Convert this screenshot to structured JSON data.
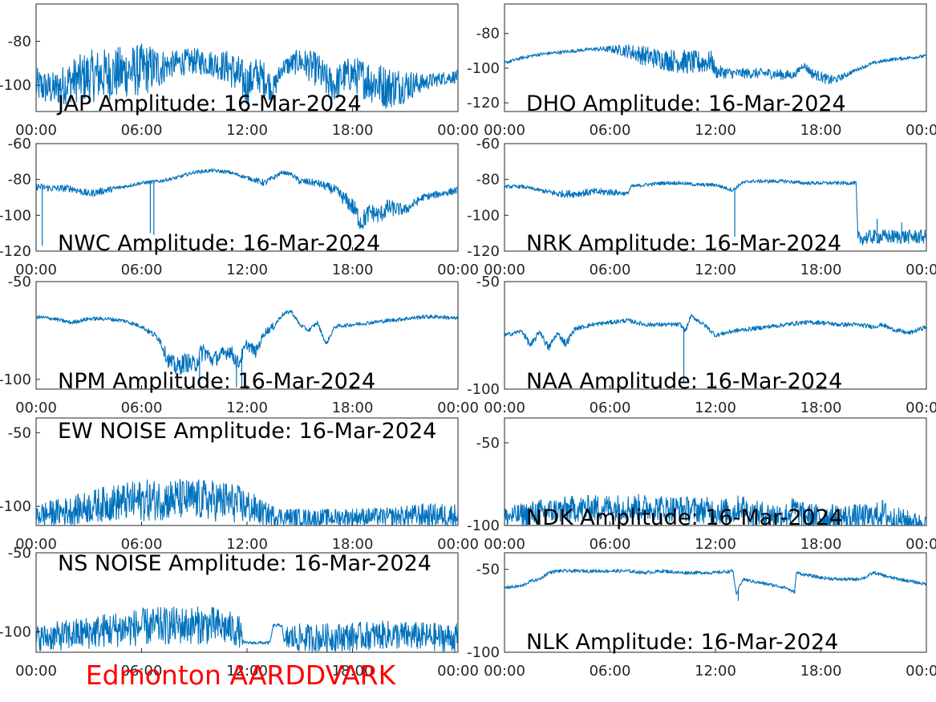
{
  "footer_label": "Edmonton AARDDVARK",
  "footer_color": "#ff0000",
  "line_color": "#0072BD",
  "x_tick_labels": [
    "00:00",
    "06:00",
    "12:00",
    "18:00",
    "00:00"
  ],
  "chart_data": [
    {
      "type": "line",
      "title": "JAP Amplitude: 16-Mar-2024",
      "xlabel": "",
      "ylabel": "",
      "xlim": [
        0,
        24
      ],
      "ylim": [
        -112,
        -63
      ],
      "yticks": [
        -80,
        -100
      ],
      "ytick_labels": [
        "-80",
        "-100"
      ],
      "x": [
        0,
        1,
        2,
        3,
        4,
        5,
        6,
        7,
        7.5,
        8,
        9,
        10,
        11,
        11.5,
        12,
        12.5,
        13,
        13.5,
        14,
        15,
        16,
        16.5,
        17,
        17.5,
        18,
        19,
        20,
        21,
        22,
        23,
        24
      ],
      "values": [
        -100,
        -102,
        -98,
        -96,
        -95,
        -94,
        -93,
        -92,
        -91,
        -90,
        -89,
        -90,
        -92,
        -96,
        -100,
        -95,
        -97,
        -102,
        -92,
        -89,
        -93,
        -98,
        -100,
        -96,
        -95,
        -98,
        -101,
        -100,
        -99,
        -97,
        -96
      ],
      "noise": [
        8,
        8,
        10,
        12,
        12,
        12,
        12,
        10,
        6,
        6,
        6,
        6,
        8,
        10,
        10,
        8,
        8,
        6,
        4,
        6,
        8,
        8,
        8,
        8,
        8,
        10,
        10,
        8,
        4,
        3,
        3
      ]
    },
    {
      "type": "line",
      "title": "DHO Amplitude: 16-Mar-2024",
      "xlabel": "",
      "ylabel": "",
      "xlim": [
        0,
        24
      ],
      "ylim": [
        -125,
        -63
      ],
      "yticks": [
        -80,
        -100,
        -120
      ],
      "ytick_labels": [
        "-80",
        "-100",
        "-120"
      ],
      "x": [
        0,
        1,
        2,
        3,
        4,
        5,
        6,
        7,
        8,
        9,
        10,
        11,
        11.8,
        12,
        13,
        14,
        15,
        16,
        16.5,
        17,
        17.5,
        18,
        18.5,
        19,
        20,
        21,
        22,
        23,
        24
      ],
      "values": [
        -97,
        -94,
        -92,
        -91,
        -90,
        -89,
        -89,
        -90,
        -93,
        -95,
        -96,
        -97,
        -96,
        -102,
        -103,
        -103,
        -103,
        -104,
        -104,
        -98,
        -103,
        -105,
        -107,
        -106,
        -101,
        -97,
        -95,
        -94,
        -93
      ],
      "noise": [
        1,
        1,
        1,
        1,
        1,
        1,
        2,
        4,
        6,
        6,
        7,
        7,
        6,
        4,
        3,
        3,
        3,
        3,
        2,
        2,
        3,
        3,
        3,
        2,
        1,
        1,
        1,
        1,
        1
      ]
    },
    {
      "type": "line",
      "title": "NWC Amplitude: 16-Mar-2024",
      "xlabel": "",
      "ylabel": "",
      "xlim": [
        0,
        24
      ],
      "ylim": [
        -120,
        -60
      ],
      "yticks": [
        -60,
        -80,
        -100,
        -120
      ],
      "ytick_labels": [
        "-60",
        "-80",
        "-100",
        "-120"
      ],
      "x": [
        0,
        1,
        2,
        3,
        4,
        5,
        6,
        7,
        8,
        9,
        10,
        11,
        12,
        13,
        14,
        14.5,
        15,
        16,
        17,
        18,
        18.5,
        19,
        19.5,
        20,
        21,
        22,
        23,
        24
      ],
      "values": [
        -84,
        -85,
        -85,
        -88,
        -86,
        -84,
        -82,
        -81,
        -79,
        -76,
        -75,
        -76,
        -79,
        -82,
        -76,
        -77,
        -81,
        -82,
        -86,
        -95,
        -104,
        -98,
        -100,
        -96,
        -97,
        -90,
        -88,
        -86
      ],
      "noise": [
        2,
        2,
        2,
        2,
        2,
        1,
        1,
        1,
        1,
        1,
        1,
        1,
        1,
        2,
        1,
        1,
        2,
        2,
        3,
        5,
        6,
        5,
        5,
        5,
        3,
        2,
        2,
        2
      ],
      "spikes": [
        [
          0.35,
          -117
        ],
        [
          6.5,
          -110
        ],
        [
          6.7,
          -111
        ]
      ]
    },
    {
      "type": "line",
      "title": "NRK Amplitude: 16-Mar-2024",
      "xlabel": "",
      "ylabel": "",
      "xlim": [
        0,
        24
      ],
      "ylim": [
        -120,
        -60
      ],
      "yticks": [
        -60,
        -80,
        -100,
        -120
      ],
      "ytick_labels": [
        "-60",
        "-80",
        "-100",
        "-120"
      ],
      "x": [
        0,
        1,
        2,
        3,
        4,
        5,
        6,
        7,
        7.2,
        8,
        9,
        10,
        11,
        12,
        13,
        13.5,
        14,
        15,
        16,
        17,
        18,
        19,
        20,
        20.1,
        21,
        22,
        23,
        24
      ],
      "values": [
        -84,
        -84,
        -86,
        -88,
        -88,
        -87,
        -87,
        -88,
        -84,
        -83,
        -82,
        -82,
        -83,
        -83,
        -86,
        -82,
        -81,
        -81,
        -81,
        -82,
        -82,
        -82,
        -82,
        -113,
        -112,
        -112,
        -112,
        -112
      ],
      "noise": [
        1,
        1,
        1,
        2,
        2,
        2,
        2,
        1,
        1,
        1,
        1,
        1,
        1,
        1,
        1,
        1,
        1,
        1,
        1,
        1,
        1,
        1,
        1,
        4,
        4,
        4,
        4,
        4
      ],
      "spikes": [
        [
          13.1,
          -112
        ],
        [
          21.2,
          -102
        ],
        [
          22.6,
          -104
        ]
      ]
    },
    {
      "type": "line",
      "title": "NPM Amplitude: 16-Mar-2024",
      "xlabel": "",
      "ylabel": "",
      "xlim": [
        0,
        24
      ],
      "ylim": [
        -105,
        -50
      ],
      "yticks": [
        -50,
        -100
      ],
      "ytick_labels": [
        "-50",
        "-100"
      ],
      "x": [
        0,
        1,
        2,
        3,
        4,
        5,
        6,
        7,
        7.5,
        8,
        8.5,
        9,
        9.5,
        10,
        10.5,
        11,
        11.5,
        12,
        12.5,
        13,
        13.5,
        14,
        14.5,
        15,
        15.5,
        16,
        16.5,
        17,
        18,
        19,
        20,
        21,
        22,
        23,
        24
      ],
      "values": [
        -68,
        -69,
        -71,
        -69,
        -69,
        -70,
        -73,
        -79,
        -90,
        -94,
        -91,
        -93,
        -85,
        -90,
        -88,
        -85,
        -92,
        -82,
        -86,
        -76,
        -73,
        -67,
        -65,
        -72,
        -75,
        -71,
        -82,
        -73,
        -72,
        -71,
        -70,
        -69,
        -68,
        -68,
        -69
      ],
      "noise": [
        1,
        1,
        1,
        1,
        1,
        1,
        1,
        2,
        4,
        5,
        5,
        5,
        5,
        4,
        4,
        4,
        4,
        3,
        3,
        2,
        2,
        1,
        1,
        1,
        1,
        1,
        1,
        1,
        1,
        1,
        1,
        1,
        1,
        1,
        1
      ],
      "spikes": [
        [
          9.3,
          -104
        ],
        [
          11.4,
          -104
        ],
        [
          11.7,
          -104
        ]
      ]
    },
    {
      "type": "line",
      "title": "NAA Amplitude: 16-Mar-2024",
      "xlabel": "",
      "ylabel": "",
      "xlim": [
        0,
        24
      ],
      "ylim": [
        -100,
        -50
      ],
      "yticks": [
        -50,
        -100
      ],
      "ytick_labels": [
        "-50",
        "-100"
      ],
      "x": [
        0,
        1,
        1.5,
        2,
        2.5,
        3,
        3.5,
        4,
        5,
        6,
        7,
        8,
        9,
        10,
        10.3,
        10.6,
        11,
        11.5,
        12,
        13,
        14,
        15,
        16,
        17,
        18,
        19,
        20,
        21,
        21.5,
        22,
        23,
        24
      ],
      "values": [
        -75,
        -73,
        -80,
        -73,
        -81,
        -74,
        -79,
        -72,
        -70,
        -69,
        -68,
        -70,
        -70,
        -70,
        -73,
        -66,
        -68,
        -71,
        -75,
        -73,
        -72,
        -71,
        -70,
        -69,
        -69,
        -70,
        -70,
        -71,
        -70,
        -72,
        -74,
        -71
      ],
      "noise": [
        1,
        1,
        2,
        1,
        2,
        1,
        2,
        1,
        1,
        1,
        1,
        1,
        1,
        1,
        1,
        1,
        1,
        1,
        1,
        1,
        1,
        1,
        1,
        1,
        1,
        1,
        1,
        1,
        1,
        1,
        1,
        1
      ],
      "spikes": [
        [
          10.2,
          -97
        ]
      ]
    },
    {
      "type": "line",
      "title": "EW NOISE Amplitude: 16-Mar-2024",
      "xlabel": "",
      "ylabel": "",
      "xlim": [
        0,
        24
      ],
      "ylim": [
        -113,
        -40
      ],
      "yticks": [
        -50,
        -100
      ],
      "ytick_labels": [
        "-50",
        "-100"
      ],
      "x": [
        0,
        2,
        4,
        6,
        8,
        10,
        11,
        12,
        13,
        14,
        16,
        18,
        20,
        22,
        24
      ],
      "values": [
        -106,
        -103,
        -98,
        -96,
        -95,
        -96,
        -97,
        -100,
        -105,
        -107,
        -108,
        -107,
        -107,
        -106,
        -106
      ],
      "noise": [
        8,
        10,
        12,
        14,
        14,
        14,
        14,
        12,
        8,
        6,
        6,
        6,
        6,
        8,
        8
      ]
    },
    {
      "type": "line",
      "title": "NDK Amplitude: 16-Mar-2024",
      "xlabel": "",
      "ylabel": "",
      "xlim": [
        0,
        24
      ],
      "ylim": [
        -100,
        -35
      ],
      "yticks": [
        -50,
        -100
      ],
      "ytick_labels": [
        "-50",
        "-100"
      ],
      "x": [
        0,
        2,
        4,
        6,
        8,
        10,
        12,
        13,
        13.5,
        14,
        16,
        16.5,
        17,
        18,
        20,
        21,
        21.5,
        22,
        23,
        24
      ],
      "values": [
        -95,
        -92,
        -90,
        -89,
        -89,
        -90,
        -91,
        -92,
        -88,
        -93,
        -94,
        -90,
        -94,
        -95,
        -95,
        -95,
        -92,
        -96,
        -97,
        -98
      ],
      "noise": [
        6,
        8,
        8,
        8,
        8,
        8,
        8,
        8,
        8,
        8,
        8,
        8,
        8,
        8,
        8,
        8,
        8,
        8,
        6,
        4
      ]
    },
    {
      "type": "line",
      "title": "NS NOISE Amplitude: 16-Mar-2024",
      "xlabel": "",
      "ylabel": "",
      "xlim": [
        0,
        24
      ],
      "ylim": [
        -113,
        -50
      ],
      "yticks": [
        -50,
        -100
      ],
      "ytick_labels": [
        "-50",
        "-100"
      ],
      "x": [
        0,
        2,
        4,
        6,
        8,
        10,
        11,
        11.6,
        11.8,
        12,
        13,
        13.3,
        13.5,
        13.6,
        14,
        14.1,
        14.3,
        15,
        16,
        18,
        20,
        22,
        24
      ],
      "values": [
        -104,
        -102,
        -99,
        -97,
        -96,
        -96,
        -98,
        -100,
        -107,
        -107,
        -107,
        -107,
        -96,
        -96,
        -96,
        -107,
        -104,
        -104,
        -104,
        -103,
        -102,
        -103,
        -104
      ],
      "noise": [
        8,
        10,
        11,
        12,
        12,
        12,
        11,
        10,
        1,
        1,
        1,
        1,
        1,
        1,
        1,
        1,
        9,
        9,
        9,
        9,
        9,
        9,
        9
      ]
    },
    {
      "type": "line",
      "title": "NLK Amplitude: 16-Mar-2024",
      "xlabel": "",
      "ylabel": "",
      "xlim": [
        0,
        24
      ],
      "ylim": [
        -100,
        -40
      ],
      "yticks": [
        -50,
        -100
      ],
      "ytick_labels": [
        "-50",
        "-100"
      ],
      "x": [
        0,
        1,
        1.5,
        2,
        2.5,
        3,
        4,
        5,
        6,
        7,
        8,
        9,
        10,
        11,
        12,
        13,
        13.2,
        13.4,
        13.6,
        14,
        15,
        16,
        16.5,
        16.6,
        17,
        18,
        19,
        20,
        20.5,
        21,
        22,
        23,
        24
      ],
      "values": [
        -61,
        -60,
        -57,
        -56,
        -52,
        -51,
        -51,
        -51,
        -51,
        -51,
        -52,
        -51,
        -52,
        -52,
        -52,
        -51,
        -66,
        -59,
        -56,
        -57,
        -59,
        -61,
        -64,
        -52,
        -53,
        -55,
        -56,
        -56,
        -55,
        -52,
        -55,
        -57,
        -59
      ],
      "noise": [
        1,
        1,
        1,
        1,
        1,
        1,
        1,
        1,
        1,
        1,
        1,
        1,
        1,
        1,
        1,
        1,
        1,
        1,
        1,
        1,
        1,
        1,
        1,
        1,
        1,
        1,
        1,
        1,
        1,
        1,
        1,
        1,
        1
      ],
      "spikes": [
        [
          13.3,
          -69
        ]
      ]
    }
  ]
}
